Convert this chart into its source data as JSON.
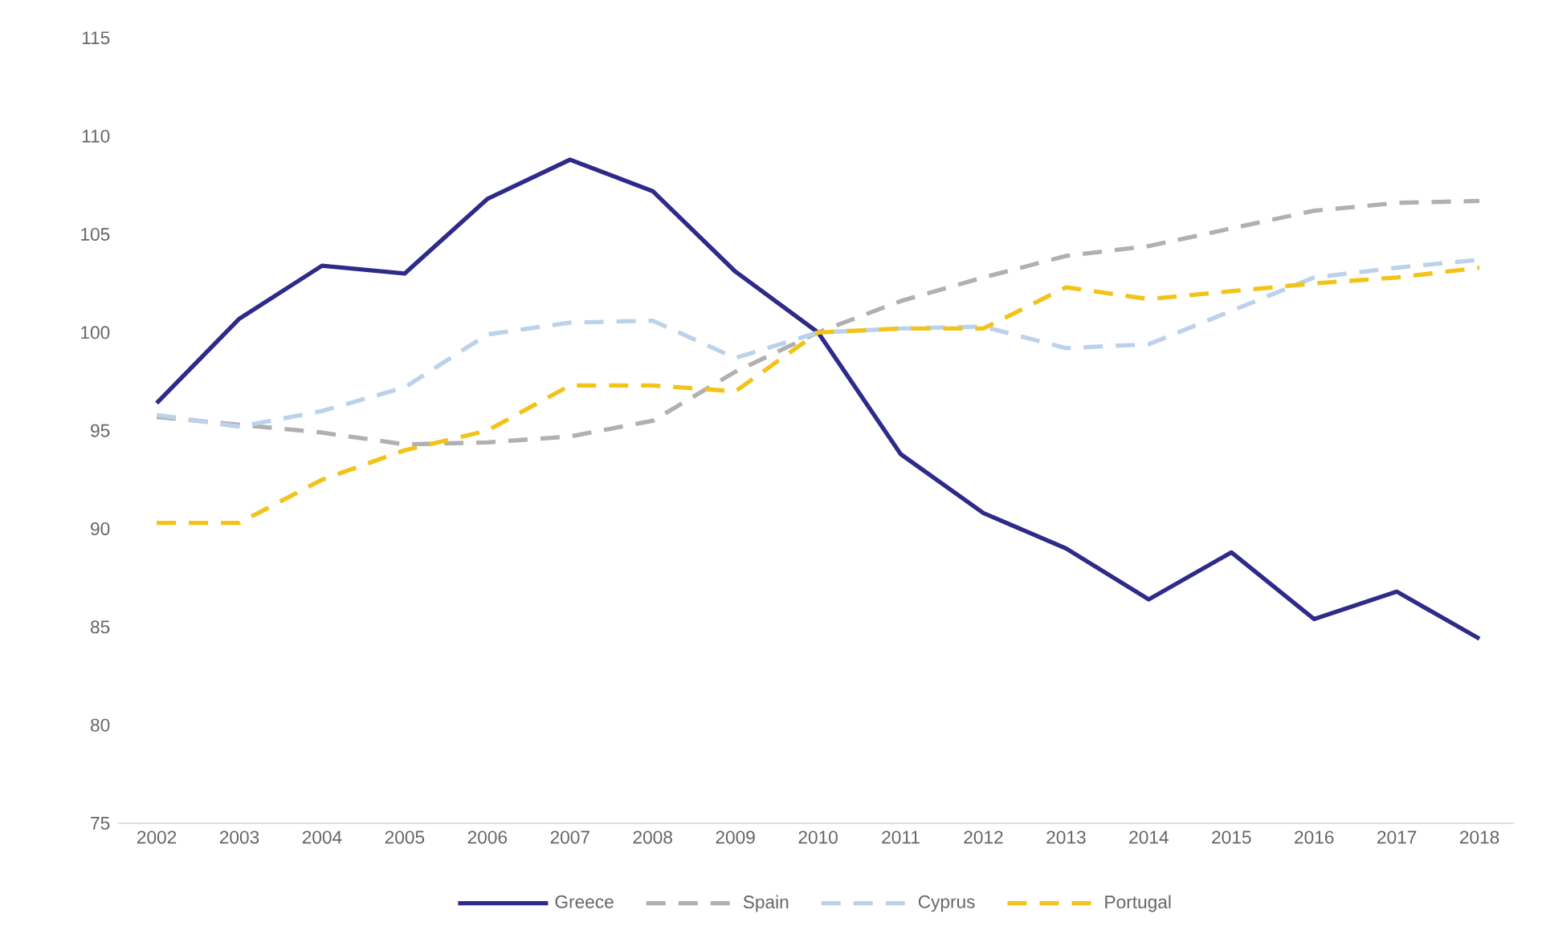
{
  "chart_data": {
    "type": "line",
    "categories": [
      "2002",
      "2003",
      "2004",
      "2005",
      "2006",
      "2007",
      "2008",
      "2009",
      "2010",
      "2011",
      "2012",
      "2013",
      "2014",
      "2015",
      "2016",
      "2017",
      "2018"
    ],
    "series": [
      {
        "name": "Greece",
        "color": "#2e2a8a",
        "line_style": "solid",
        "values": [
          96.4,
          100.7,
          103.4,
          103.0,
          106.8,
          108.8,
          107.2,
          103.1,
          100,
          93.8,
          90.8,
          89.0,
          86.4,
          88.8,
          85.4,
          86.8,
          84.4
        ]
      },
      {
        "name": "Spain",
        "color": "#b0b0b0",
        "line_style": "dashed",
        "values": [
          95.7,
          95.3,
          94.9,
          94.3,
          94.4,
          94.7,
          95.5,
          98.0,
          100,
          101.6,
          102.8,
          103.9,
          104.4,
          105.3,
          106.2,
          106.6,
          106.7
        ]
      },
      {
        "name": "Cyprus",
        "color": "#bcd2ea",
        "line_style": "dashed",
        "values": [
          95.8,
          95.2,
          96.0,
          97.2,
          99.9,
          100.5,
          100.6,
          98.7,
          100,
          100.2,
          100.3,
          99.2,
          99.4,
          101.1,
          102.8,
          103.3,
          103.7
        ]
      },
      {
        "name": "Portugal",
        "color": "#f2c318",
        "line_style": "dashed",
        "values": [
          90.3,
          90.3,
          92.5,
          94.0,
          95.0,
          97.3,
          97.3,
          97.0,
          100,
          100.2,
          100.2,
          102.3,
          101.7,
          102.1,
          102.5,
          102.8,
          103.3
        ]
      }
    ],
    "ylim": [
      75,
      115
    ],
    "yticks": [
      75,
      80,
      85,
      90,
      95,
      100,
      105,
      110,
      115
    ],
    "legend": "bottom"
  }
}
